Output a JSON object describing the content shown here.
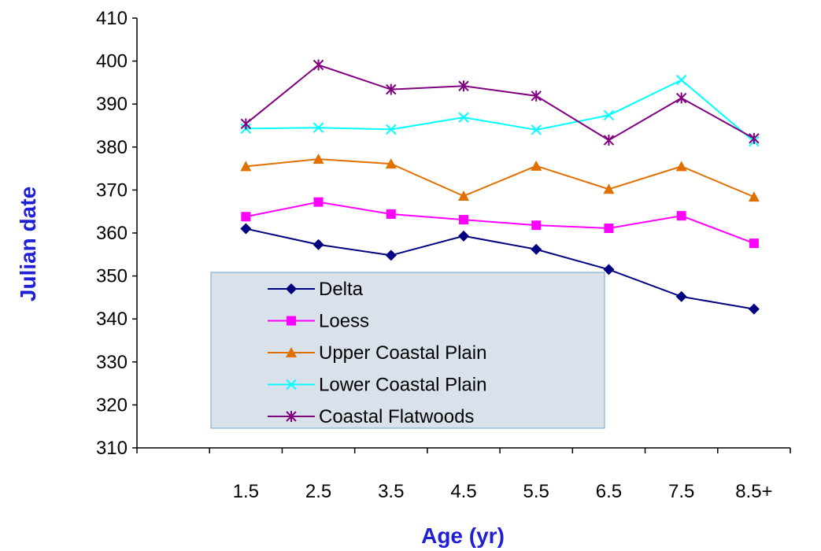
{
  "chart_data": {
    "type": "line",
    "xlabel": "Age (yr)",
    "ylabel": "Julian date",
    "categories": [
      "",
      "1.5",
      "2.5",
      "3.5",
      "4.5",
      "5.5",
      "6.5",
      "7.5",
      "8.5+"
    ],
    "ylim": [
      310,
      410
    ],
    "yticks": [
      "310",
      "320",
      "330",
      "340",
      "350",
      "360",
      "370",
      "380",
      "390",
      "400",
      "410"
    ],
    "grid": false,
    "legend_position": "lower-left",
    "series": [
      {
        "name": "Delta",
        "color": "#000080",
        "marker": "diamond",
        "values": [
          null,
          361,
          357.3,
          354.8,
          359.3,
          356.2,
          351.5,
          345.2,
          342.3
        ]
      },
      {
        "name": "Loess",
        "color": "#ff00ff",
        "marker": "square",
        "values": [
          null,
          363.8,
          367.2,
          364.4,
          363.1,
          361.8,
          361.1,
          364,
          357.6
        ]
      },
      {
        "name": "Upper Coastal Plain",
        "color": "#e07000",
        "marker": "triangle",
        "values": [
          null,
          375.5,
          377.2,
          376.1,
          368.6,
          375.6,
          370.2,
          375.5,
          368.4
        ]
      },
      {
        "name": "Lower Coastal Plain",
        "color": "#00ffff",
        "marker": "x",
        "values": [
          null,
          384.3,
          384.5,
          384.1,
          386.9,
          384,
          387.4,
          395.6,
          381.3
        ]
      },
      {
        "name": "Coastal Flatwoods",
        "color": "#800080",
        "marker": "asterisk",
        "values": [
          null,
          385.4,
          399.1,
          393.4,
          394.2,
          391.9,
          381.6,
          391.4,
          382
        ]
      }
    ]
  }
}
